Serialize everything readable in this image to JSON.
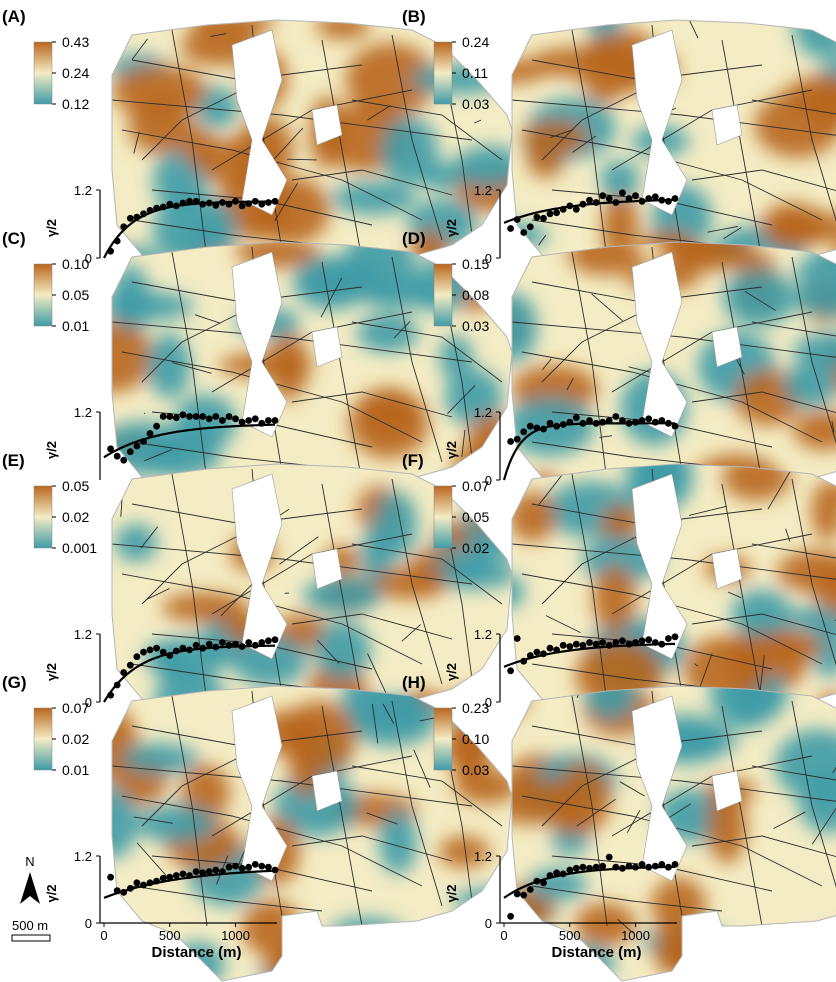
{
  "figure": {
    "colors": {
      "high": "#b8661c",
      "mid": "#f4ecc4",
      "low": "#3f9ba7",
      "map_lines": "#2e2e2e",
      "water": "#ffffff"
    },
    "north_label": "N",
    "scale_label": "500 m",
    "xlabel": "Distance (m)",
    "ylabel": "γ/2"
  },
  "chart_data": [
    {
      "panel": "(A)",
      "type": "scatter",
      "legend": {
        "max": "0.43",
        "mid": "0.24",
        "min": "0.12"
      },
      "x": [
        50,
        100,
        150,
        200,
        250,
        300,
        350,
        400,
        450,
        500,
        550,
        600,
        650,
        700,
        750,
        800,
        850,
        900,
        950,
        1000,
        1050,
        1100,
        1150,
        1200,
        1250,
        1300
      ],
      "y": [
        0.12,
        0.3,
        0.55,
        0.7,
        0.72,
        0.78,
        0.84,
        0.88,
        0.9,
        0.95,
        0.92,
        0.97,
        1.0,
        1.0,
        0.95,
        0.97,
        0.93,
        0.98,
        0.95,
        1.0,
        0.92,
        0.96,
        1.0,
        0.95,
        0.98,
        1.0
      ],
      "curve": {
        "nugget": 0.0,
        "sill": 1.0,
        "range": 220
      },
      "xlim": [
        0,
        1300
      ],
      "ylim": [
        0,
        1.2
      ],
      "yticks": [
        "0",
        "1.2"
      ]
    },
    {
      "panel": "(B)",
      "type": "scatter",
      "legend": {
        "max": "0.24",
        "mid": "0.11",
        "min": "0.03"
      },
      "x": [
        50,
        100,
        150,
        200,
        250,
        300,
        350,
        400,
        450,
        500,
        550,
        600,
        650,
        700,
        750,
        800,
        850,
        900,
        950,
        1000,
        1050,
        1100,
        1150,
        1200,
        1250,
        1300
      ],
      "y": [
        0.52,
        0.68,
        0.45,
        0.55,
        0.72,
        0.7,
        0.78,
        0.8,
        0.86,
        0.92,
        0.86,
        0.95,
        1.02,
        0.98,
        1.1,
        1.05,
        0.98,
        1.15,
        1.05,
        1.1,
        1.0,
        1.05,
        1.08,
        1.02,
        1.0,
        1.05
      ],
      "curve": {
        "nugget": 0.62,
        "sill": 1.05,
        "range": 450
      },
      "xlim": [
        0,
        1300
      ],
      "ylim": [
        0,
        1.2
      ],
      "yticks": [
        "0",
        "1.2"
      ]
    },
    {
      "panel": "(C)",
      "type": "scatter",
      "legend": {
        "max": "0.10",
        "mid": "0.05",
        "min": "0.01"
      },
      "x": [
        50,
        100,
        150,
        200,
        250,
        300,
        350,
        400,
        450,
        500,
        550,
        600,
        650,
        700,
        750,
        800,
        850,
        900,
        950,
        1000,
        1050,
        1100,
        1150,
        1200,
        1250,
        1300
      ],
      "y": [
        0.55,
        0.42,
        0.35,
        0.5,
        0.6,
        0.68,
        0.82,
        0.95,
        1.12,
        1.12,
        1.1,
        1.15,
        1.12,
        1.12,
        1.12,
        1.08,
        1.12,
        1.05,
        1.12,
        1.08,
        1.02,
        1.05,
        1.08,
        1.0,
        1.05,
        1.05
      ],
      "curve": {
        "nugget": 0.4,
        "sill": 1.0,
        "range": 400
      },
      "xlim": [
        0,
        1300
      ],
      "ylim": [
        0,
        1.2
      ],
      "yticks": [
        "1.2"
      ]
    },
    {
      "panel": "(D)",
      "type": "scatter",
      "legend": {
        "max": "0.15",
        "mid": "0.08",
        "min": "0.03"
      },
      "x": [
        50,
        100,
        150,
        200,
        250,
        300,
        350,
        400,
        450,
        500,
        550,
        600,
        650,
        700,
        750,
        800,
        850,
        900,
        950,
        1000,
        1050,
        1100,
        1150,
        1200,
        1250,
        1300
      ],
      "y": [
        0.68,
        0.72,
        0.85,
        0.95,
        0.92,
        0.9,
        1.0,
        0.95,
        0.98,
        1.02,
        1.1,
        1.0,
        1.05,
        1.0,
        1.02,
        1.05,
        1.12,
        1.05,
        1.0,
        1.02,
        1.05,
        1.08,
        1.02,
        1.05,
        1.0,
        0.95
      ],
      "curve": {
        "nugget": 0.0,
        "sill": 1.0,
        "range": 120
      },
      "xlim": [
        0,
        1300
      ],
      "ylim": [
        0,
        1.2
      ],
      "yticks": [
        "0",
        "1.2"
      ]
    },
    {
      "panel": "(E)",
      "type": "scatter",
      "legend": {
        "max": "0.05",
        "mid": "0.02",
        "min": "0.001"
      },
      "x": [
        50,
        100,
        150,
        200,
        250,
        300,
        350,
        400,
        450,
        500,
        550,
        600,
        650,
        700,
        750,
        800,
        850,
        900,
        950,
        1000,
        1050,
        1100,
        1150,
        1200,
        1250,
        1300
      ],
      "y": [
        0.12,
        0.3,
        0.52,
        0.65,
        0.8,
        0.88,
        0.92,
        0.95,
        0.88,
        0.82,
        0.9,
        0.95,
        0.92,
        1.0,
        0.95,
        1.02,
        0.97,
        1.05,
        1.0,
        1.02,
        0.98,
        1.05,
        1.0,
        1.05,
        1.08,
        1.1
      ],
      "curve": {
        "nugget": 0.0,
        "sill": 1.0,
        "range": 260
      },
      "xlim": [
        0,
        1300
      ],
      "ylim": [
        0,
        1.2
      ],
      "yticks": [
        "0",
        "1.2"
      ]
    },
    {
      "panel": "(F)",
      "type": "scatter",
      "legend": {
        "max": "0.07",
        "mid": "0.05",
        "min": "0.02"
      },
      "x": [
        50,
        100,
        150,
        200,
        250,
        300,
        350,
        400,
        450,
        500,
        550,
        600,
        650,
        700,
        750,
        800,
        850,
        900,
        950,
        1000,
        1050,
        1100,
        1150,
        1200,
        1250,
        1300
      ],
      "y": [
        0.55,
        1.12,
        0.72,
        0.82,
        0.88,
        0.85,
        0.95,
        0.92,
        1.0,
        0.98,
        1.02,
        1.0,
        1.05,
        1.02,
        1.05,
        1.0,
        1.05,
        1.08,
        1.02,
        1.05,
        1.08,
        1.1,
        1.05,
        1.02,
        1.12,
        1.15
      ],
      "curve": {
        "nugget": 0.62,
        "sill": 1.05,
        "range": 450
      },
      "xlim": [
        0,
        1300
      ],
      "ylim": [
        0,
        1.2
      ],
      "yticks": [
        "0",
        "1.2"
      ]
    },
    {
      "panel": "(G)",
      "type": "scatter",
      "legend": {
        "max": "0.07",
        "mid": "0.02",
        "min": "0.01"
      },
      "x": [
        50,
        100,
        150,
        200,
        250,
        300,
        350,
        400,
        450,
        500,
        550,
        600,
        650,
        700,
        750,
        800,
        850,
        900,
        950,
        1000,
        1050,
        1100,
        1150,
        1200,
        1250,
        1300
      ],
      "y": [
        0.82,
        0.58,
        0.55,
        0.62,
        0.72,
        0.68,
        0.72,
        0.75,
        0.8,
        0.82,
        0.85,
        0.88,
        0.85,
        0.92,
        0.9,
        0.92,
        0.95,
        0.92,
        1.0,
        1.02,
        0.98,
        1.0,
        1.05,
        1.02,
        1.0,
        0.95
      ],
      "curve": {
        "nugget": 0.45,
        "sill": 1.0,
        "range": 600
      },
      "xlim": [
        0,
        1300
      ],
      "ylim": [
        0,
        1.2
      ],
      "yticks": [
        "0",
        "1.2"
      ],
      "xticks": [
        "0",
        "500",
        "1000"
      ]
    },
    {
      "panel": "(H)",
      "type": "scatter",
      "legend": {
        "max": "0.23",
        "mid": "0.10",
        "min": "0.03"
      },
      "x": [
        50,
        100,
        150,
        200,
        250,
        300,
        350,
        400,
        450,
        500,
        550,
        600,
        650,
        700,
        750,
        800,
        850,
        900,
        950,
        1000,
        1050,
        1100,
        1150,
        1200,
        1250,
        1300
      ],
      "y": [
        0.12,
        0.52,
        0.5,
        0.6,
        0.75,
        0.72,
        0.85,
        0.9,
        0.88,
        0.95,
        0.98,
        1.0,
        0.98,
        1.0,
        1.02,
        1.18,
        1.0,
        0.98,
        1.02,
        1.0,
        1.05,
        1.0,
        1.02,
        1.05,
        1.0,
        1.05
      ],
      "curve": {
        "nugget": 0.45,
        "sill": 1.02,
        "range": 350
      },
      "xlim": [
        0,
        1300
      ],
      "ylim": [
        0,
        1.2
      ],
      "yticks": [
        "0",
        "1.2"
      ],
      "xticks": [
        "0",
        "500",
        "1000"
      ]
    }
  ]
}
